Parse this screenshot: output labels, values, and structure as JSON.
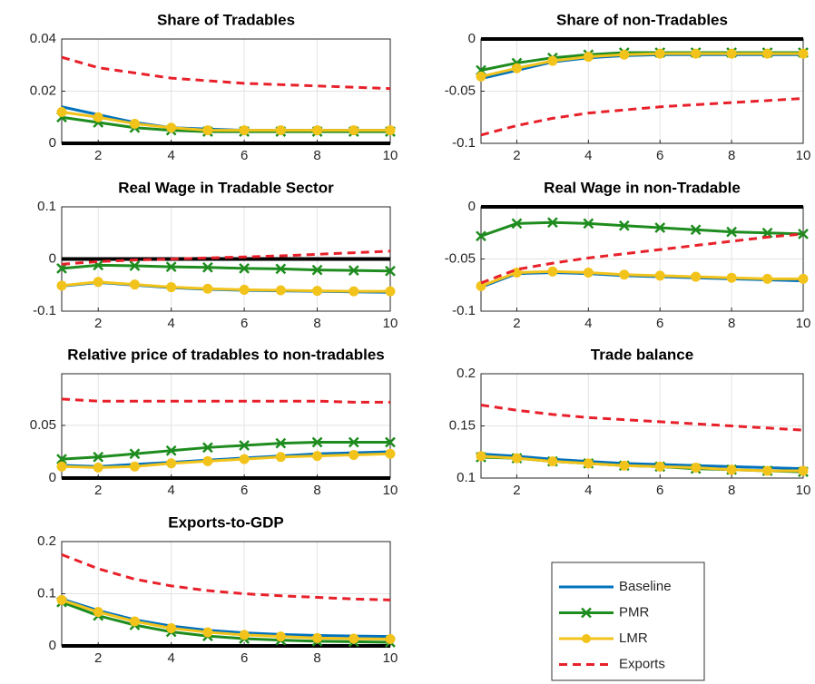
{
  "chart_data": [
    {
      "type": "line",
      "title": "Share of Tradables",
      "x": [
        1,
        2,
        3,
        4,
        5,
        6,
        7,
        8,
        9,
        10
      ],
      "xlim": [
        1,
        10
      ],
      "xticks": [
        2,
        4,
        6,
        8,
        10
      ],
      "ylim": [
        0,
        0.04
      ],
      "yticks": [
        0,
        0.02,
        0.04
      ],
      "grid": true,
      "series": [
        {
          "name": "Baseline",
          "color": "#0072bd",
          "values": [
            0.014,
            0.011,
            0.008,
            0.006,
            0.0055,
            0.005,
            0.005,
            0.005,
            0.005,
            0.005
          ]
        },
        {
          "name": "PMR",
          "color": "#1e8c1e",
          "marker": "x",
          "values": [
            0.01,
            0.008,
            0.006,
            0.005,
            0.0045,
            0.0045,
            0.0045,
            0.0045,
            0.0045,
            0.0045
          ]
        },
        {
          "name": "LMR",
          "color": "#f2c31b",
          "marker": "o",
          "values": [
            0.012,
            0.01,
            0.0075,
            0.006,
            0.005,
            0.005,
            0.005,
            0.005,
            0.005,
            0.005
          ]
        },
        {
          "name": "Exports",
          "color": "#e8202a",
          "dash": true,
          "values": [
            0.033,
            0.029,
            0.027,
            0.025,
            0.024,
            0.023,
            0.0225,
            0.022,
            0.0215,
            0.021
          ]
        }
      ]
    },
    {
      "type": "line",
      "title": "Share of non-Tradables",
      "x": [
        1,
        2,
        3,
        4,
        5,
        6,
        7,
        8,
        9,
        10
      ],
      "xlim": [
        1,
        10
      ],
      "xticks": [
        2,
        4,
        6,
        8,
        10
      ],
      "ylim": [
        -0.1,
        0
      ],
      "yticks": [
        -0.1,
        -0.05,
        0
      ],
      "grid": true,
      "series": [
        {
          "name": "Baseline",
          "color": "#0072bd",
          "values": [
            -0.038,
            -0.03,
            -0.022,
            -0.018,
            -0.016,
            -0.015,
            -0.015,
            -0.015,
            -0.015,
            -0.015
          ]
        },
        {
          "name": "PMR",
          "color": "#1e8c1e",
          "marker": "x",
          "values": [
            -0.03,
            -0.023,
            -0.018,
            -0.015,
            -0.013,
            -0.013,
            -0.013,
            -0.013,
            -0.013,
            -0.013
          ]
        },
        {
          "name": "LMR",
          "color": "#f2c31b",
          "marker": "o",
          "values": [
            -0.036,
            -0.028,
            -0.021,
            -0.017,
            -0.015,
            -0.014,
            -0.014,
            -0.014,
            -0.014,
            -0.014
          ]
        },
        {
          "name": "Exports",
          "color": "#e8202a",
          "dash": true,
          "values": [
            -0.092,
            -0.083,
            -0.076,
            -0.071,
            -0.068,
            -0.065,
            -0.063,
            -0.061,
            -0.059,
            -0.057
          ]
        }
      ]
    },
    {
      "type": "line",
      "title": "Real Wage in Tradable Sector",
      "x": [
        1,
        2,
        3,
        4,
        5,
        6,
        7,
        8,
        9,
        10
      ],
      "xlim": [
        1,
        10
      ],
      "xticks": [
        2,
        4,
        6,
        8,
        10
      ],
      "ylim": [
        -0.1,
        0.1
      ],
      "yticks": [
        -0.1,
        0,
        0.1
      ],
      "grid": true,
      "series": [
        {
          "name": "Baseline",
          "color": "#0072bd",
          "values": [
            -0.052,
            -0.045,
            -0.05,
            -0.055,
            -0.058,
            -0.06,
            -0.061,
            -0.062,
            -0.063,
            -0.064
          ]
        },
        {
          "name": "PMR",
          "color": "#1e8c1e",
          "marker": "x",
          "values": [
            -0.018,
            -0.012,
            -0.013,
            -0.015,
            -0.016,
            -0.018,
            -0.019,
            -0.021,
            -0.022,
            -0.023
          ]
        },
        {
          "name": "LMR",
          "color": "#f2c31b",
          "marker": "o",
          "values": [
            -0.051,
            -0.044,
            -0.049,
            -0.054,
            -0.057,
            -0.059,
            -0.06,
            -0.061,
            -0.062,
            -0.062
          ]
        },
        {
          "name": "Exports",
          "color": "#e8202a",
          "dash": true,
          "values": [
            -0.01,
            -0.005,
            -0.002,
            0,
            0.002,
            0.004,
            0.006,
            0.009,
            0.012,
            0.015
          ]
        }
      ]
    },
    {
      "type": "line",
      "title": "Real Wage in non-Tradable",
      "x": [
        1,
        2,
        3,
        4,
        5,
        6,
        7,
        8,
        9,
        10
      ],
      "xlim": [
        1,
        10
      ],
      "xticks": [
        2,
        4,
        6,
        8,
        10
      ],
      "ylim": [
        -0.1,
        0
      ],
      "yticks": [
        -0.1,
        -0.05,
        0
      ],
      "grid": true,
      "series": [
        {
          "name": "Baseline",
          "color": "#0072bd",
          "values": [
            -0.077,
            -0.064,
            -0.063,
            -0.064,
            -0.066,
            -0.067,
            -0.068,
            -0.069,
            -0.07,
            -0.071
          ]
        },
        {
          "name": "PMR",
          "color": "#1e8c1e",
          "marker": "x",
          "values": [
            -0.028,
            -0.016,
            -0.015,
            -0.016,
            -0.018,
            -0.02,
            -0.022,
            -0.024,
            -0.025,
            -0.026
          ]
        },
        {
          "name": "LMR",
          "color": "#f2c31b",
          "marker": "o",
          "values": [
            -0.076,
            -0.063,
            -0.062,
            -0.063,
            -0.065,
            -0.066,
            -0.067,
            -0.068,
            -0.069,
            -0.069
          ]
        },
        {
          "name": "Exports",
          "color": "#e8202a",
          "dash": true,
          "values": [
            -0.073,
            -0.06,
            -0.054,
            -0.049,
            -0.045,
            -0.041,
            -0.037,
            -0.033,
            -0.029,
            -0.026
          ]
        }
      ]
    },
    {
      "type": "line",
      "title": "Relative price of tradables to non-tradables",
      "x": [
        1,
        2,
        3,
        4,
        5,
        6,
        7,
        8,
        9,
        10
      ],
      "xlim": [
        1,
        10
      ],
      "xticks": [
        2,
        4,
        6,
        8,
        10
      ],
      "ylim": [
        0,
        0.099
      ],
      "yticks": [
        0,
        0.05
      ],
      "grid": true,
      "series": [
        {
          "name": "Baseline",
          "color": "#0072bd",
          "values": [
            0.012,
            0.011,
            0.013,
            0.015,
            0.017,
            0.019,
            0.021,
            0.023,
            0.024,
            0.025
          ]
        },
        {
          "name": "PMR",
          "color": "#1e8c1e",
          "marker": "x",
          "values": [
            0.018,
            0.02,
            0.023,
            0.026,
            0.029,
            0.031,
            0.033,
            0.034,
            0.034,
            0.034
          ]
        },
        {
          "name": "LMR",
          "color": "#f2c31b",
          "marker": "o",
          "values": [
            0.011,
            0.01,
            0.011,
            0.014,
            0.016,
            0.018,
            0.02,
            0.021,
            0.022,
            0.023
          ]
        },
        {
          "name": "Exports",
          "color": "#e8202a",
          "dash": true,
          "values": [
            0.075,
            0.073,
            0.073,
            0.073,
            0.073,
            0.073,
            0.073,
            0.073,
            0.072,
            0.072
          ]
        }
      ]
    },
    {
      "type": "line",
      "title": "Trade balance",
      "x": [
        1,
        2,
        3,
        4,
        5,
        6,
        7,
        8,
        9,
        10
      ],
      "xlim": [
        1,
        10
      ],
      "xticks": [
        2,
        4,
        6,
        8,
        10
      ],
      "ylim": [
        0.1,
        0.2
      ],
      "yticks": [
        0.1,
        0.15,
        0.2
      ],
      "grid": true,
      "series": [
        {
          "name": "Baseline",
          "color": "#0072bd",
          "values": [
            0.123,
            0.121,
            0.118,
            0.116,
            0.114,
            0.113,
            0.112,
            0.111,
            0.11,
            0.109
          ]
        },
        {
          "name": "PMR",
          "color": "#1e8c1e",
          "marker": "x",
          "values": [
            0.12,
            0.119,
            0.116,
            0.114,
            0.112,
            0.111,
            0.109,
            0.108,
            0.107,
            0.106
          ]
        },
        {
          "name": "LMR",
          "color": "#f2c31b",
          "marker": "o",
          "values": [
            0.121,
            0.119,
            0.116,
            0.114,
            0.112,
            0.111,
            0.11,
            0.108,
            0.107,
            0.107
          ]
        },
        {
          "name": "Exports",
          "color": "#e8202a",
          "dash": true,
          "values": [
            0.17,
            0.165,
            0.161,
            0.158,
            0.156,
            0.154,
            0.152,
            0.15,
            0.148,
            0.146
          ]
        }
      ]
    },
    {
      "type": "line",
      "title": "Exports-to-GDP",
      "x": [
        1,
        2,
        3,
        4,
        5,
        6,
        7,
        8,
        9,
        10
      ],
      "xlim": [
        1,
        10
      ],
      "xticks": [
        2,
        4,
        6,
        8,
        10
      ],
      "ylim": [
        0,
        0.2
      ],
      "yticks": [
        0,
        0.1,
        0.2
      ],
      "grid": true,
      "series": [
        {
          "name": "Baseline",
          "color": "#0072bd",
          "values": [
            0.09,
            0.068,
            0.05,
            0.038,
            0.03,
            0.025,
            0.022,
            0.02,
            0.019,
            0.018
          ]
        },
        {
          "name": "PMR",
          "color": "#1e8c1e",
          "marker": "x",
          "values": [
            0.084,
            0.058,
            0.04,
            0.027,
            0.019,
            0.014,
            0.011,
            0.009,
            0.008,
            0.007
          ]
        },
        {
          "name": "LMR",
          "color": "#f2c31b",
          "marker": "o",
          "values": [
            0.088,
            0.065,
            0.047,
            0.034,
            0.026,
            0.021,
            0.018,
            0.015,
            0.014,
            0.013
          ]
        },
        {
          "name": "Exports",
          "color": "#e8202a",
          "dash": true,
          "values": [
            0.175,
            0.148,
            0.128,
            0.115,
            0.106,
            0.1,
            0.096,
            0.093,
            0.09,
            0.088
          ]
        }
      ]
    }
  ]
}
